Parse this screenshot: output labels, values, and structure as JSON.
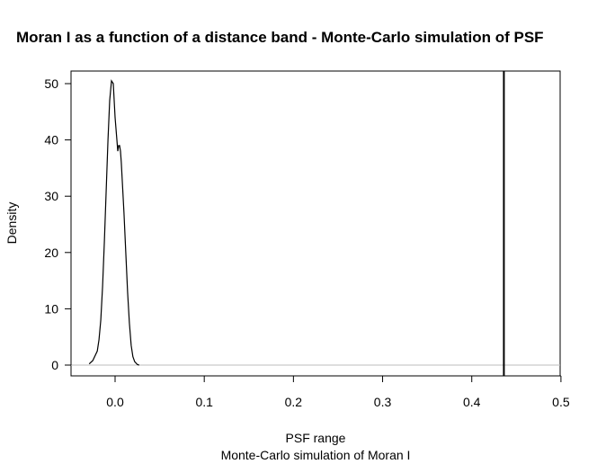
{
  "chart_data": {
    "type": "line",
    "title": "Moran I as a function of a distance band - Monte-Carlo simulation of PSF",
    "xlabel": "PSF range",
    "sub": "Monte-Carlo simulation of Moran I",
    "ylabel": "Density",
    "xlim": [
      -0.05,
      0.5
    ],
    "ylim": [
      0,
      52
    ],
    "xticks": [
      0.0,
      0.1,
      0.2,
      0.3,
      0.4,
      0.5
    ],
    "xtick_labels": [
      "0.0",
      "0.1",
      "0.2",
      "0.3",
      "0.4",
      "0.5"
    ],
    "yticks": [
      0,
      10,
      20,
      30,
      40,
      50
    ],
    "ytick_labels": [
      "0",
      "10",
      "20",
      "30",
      "40",
      "50"
    ],
    "grid": false,
    "series": [
      {
        "x": [
          -0.029,
          -0.025,
          -0.02,
          -0.018,
          -0.016,
          -0.014,
          -0.012,
          -0.01,
          -0.008,
          -0.006,
          -0.004,
          -0.002,
          -0.001,
          0.0,
          0.001,
          0.002,
          0.003,
          0.004,
          0.005,
          0.006,
          0.007,
          0.008,
          0.009,
          0.01,
          0.012,
          0.014,
          0.016,
          0.018,
          0.02,
          0.022,
          0.025,
          0.027
        ],
        "y": [
          0.2,
          0.8,
          2.5,
          4.5,
          8,
          14,
          22,
          31,
          40,
          47,
          50.5,
          50,
          47,
          44,
          42,
          40,
          38,
          39,
          39,
          38,
          36,
          33,
          30,
          27,
          20,
          13,
          7.5,
          3.5,
          1.5,
          0.6,
          0.1,
          0
        ],
        "color": "#000000"
      }
    ],
    "hline": {
      "y": 0,
      "color": "#bebebe"
    },
    "vline": {
      "x": 0.436,
      "color": "#000000"
    }
  }
}
